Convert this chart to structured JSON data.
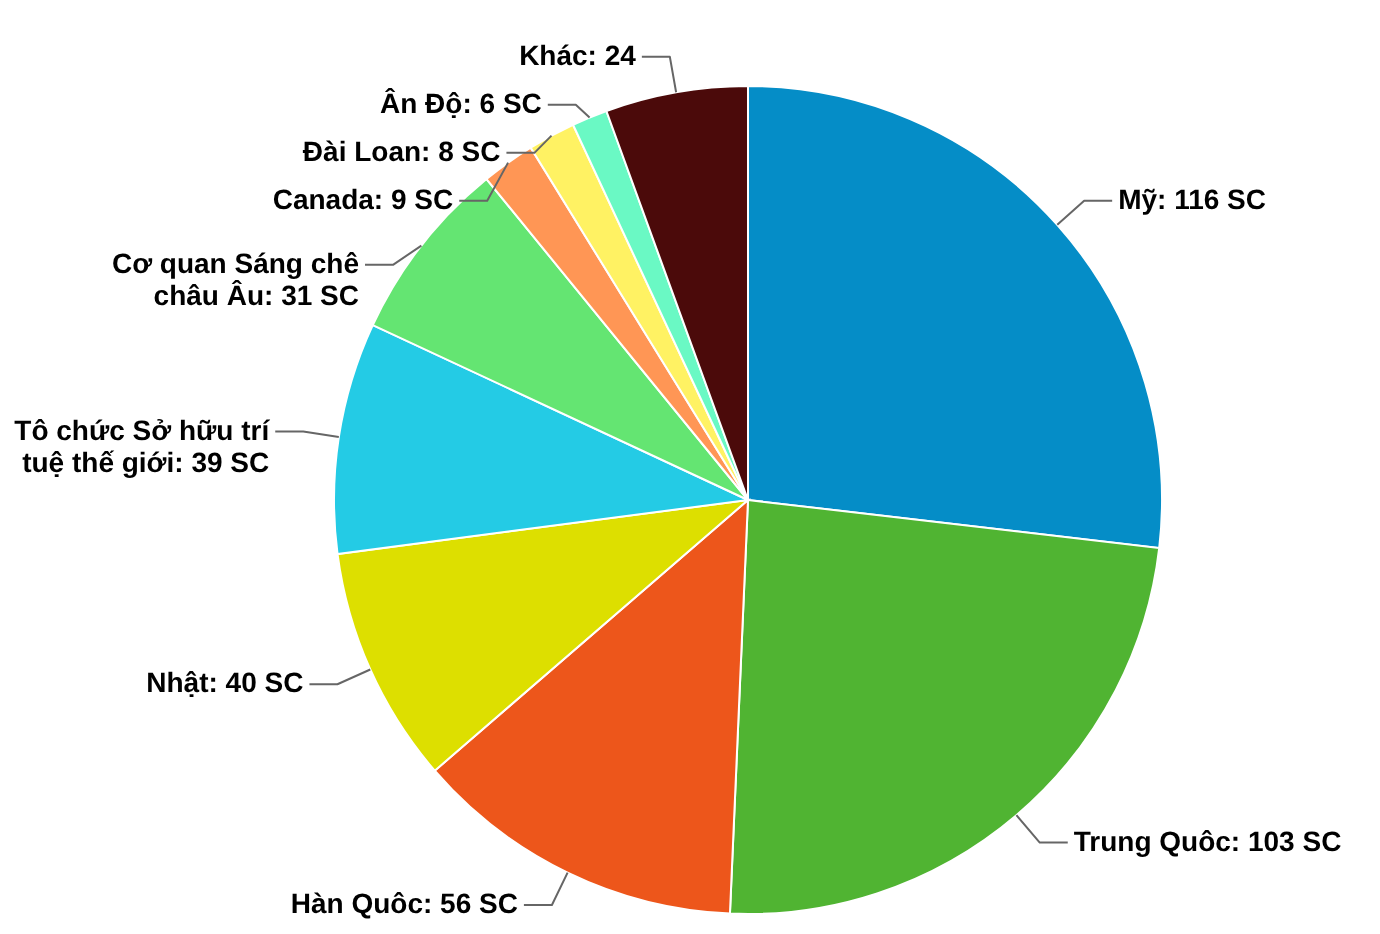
{
  "chart_data": {
    "type": "pie",
    "categories": [
      "Mỹ",
      "Trung Quôc",
      "Hàn Quôc",
      "Nhật",
      "Tô chức Sở hữu trí tuệ thế giới",
      "Cơ quan Sáng chê châu Âu",
      "Canada",
      "Đài Loan",
      "Ân Độ",
      "Khác"
    ],
    "values": [
      116,
      103,
      56,
      40,
      39,
      31,
      9,
      8,
      6,
      24
    ],
    "value_labels": [
      "116 SC",
      "103 SC",
      "56 SC",
      "40 SC",
      "39 SC",
      "31 SC",
      "9 SC",
      "8 SC",
      "6 SC",
      "24"
    ],
    "colors": [
      "#058dc7",
      "#50b432",
      "#ed561b",
      "#dddf00",
      "#24cbe5",
      "#64e572",
      "#ff9655",
      "#fff263",
      "#6af9c4",
      "#4b0a0a"
    ]
  }
}
